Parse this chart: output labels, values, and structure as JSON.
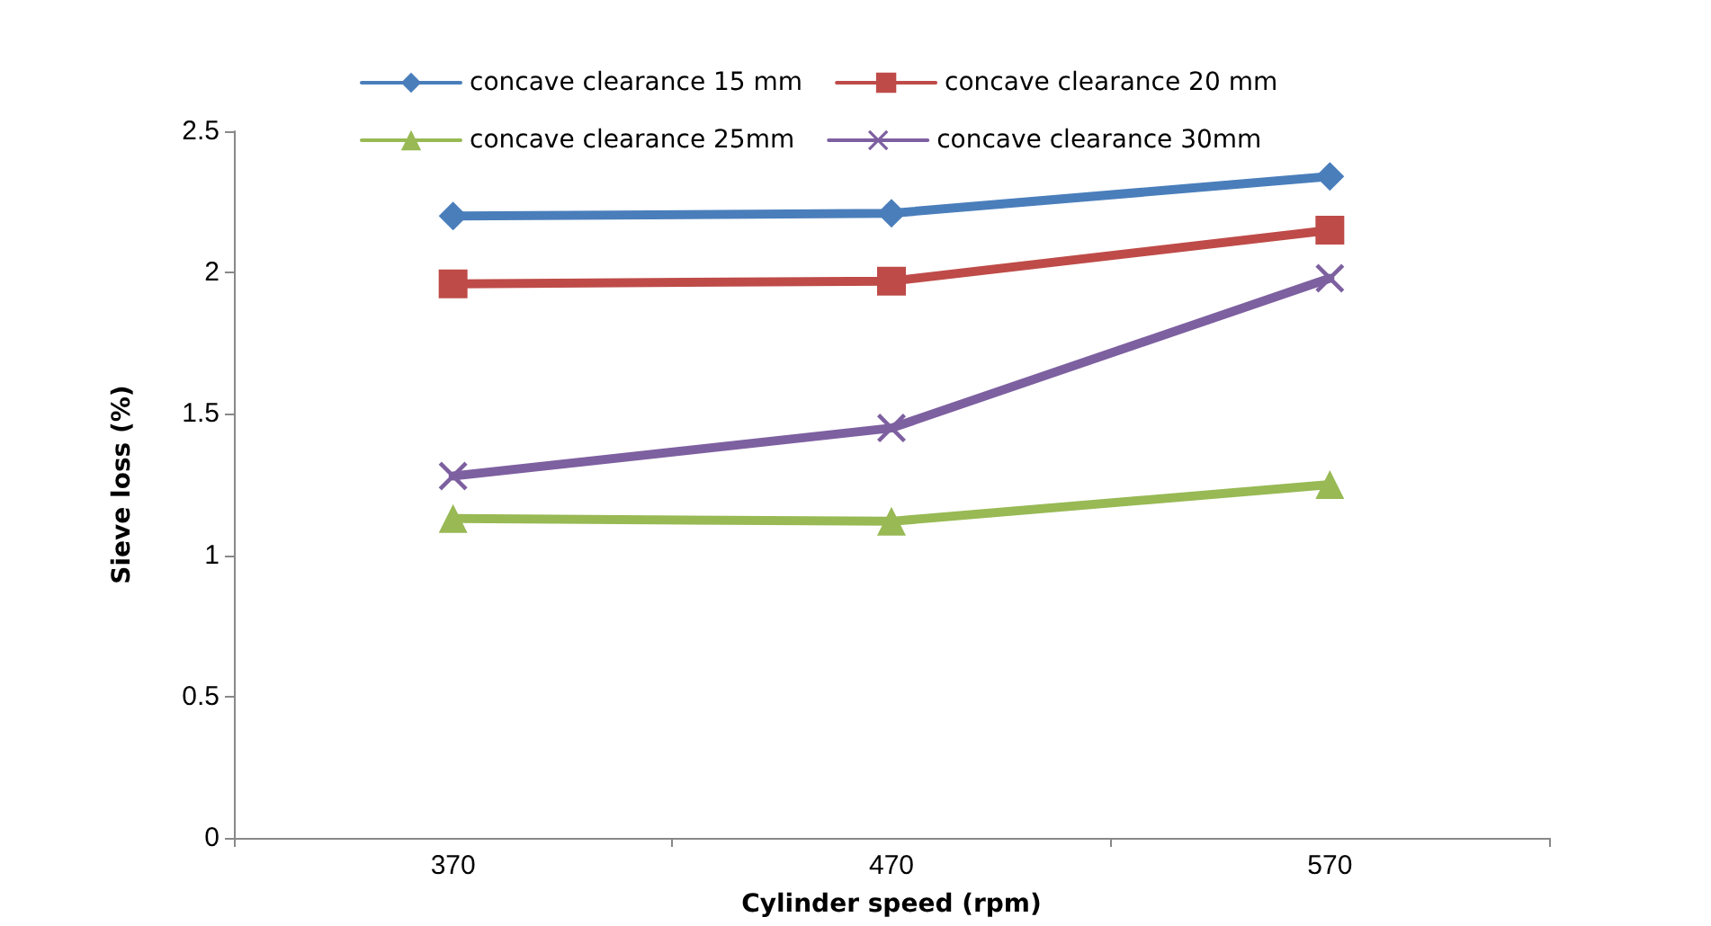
{
  "chart_data": {
    "type": "line",
    "xlabel": "Cylinder speed (rpm)",
    "ylabel": "Sieve loss (%)",
    "categories": [
      "370",
      "470",
      "570"
    ],
    "series": [
      {
        "name": "concave clearance 15 mm",
        "color": "#4a7ebb",
        "marker": "diamond",
        "values": [
          2.2,
          2.21,
          2.34
        ]
      },
      {
        "name": "concave clearance 20 mm",
        "color": "#be4b48",
        "marker": "square",
        "values": [
          1.96,
          1.97,
          2.15
        ]
      },
      {
        "name": "concave clearance 25mm",
        "color": "#98b954",
        "marker": "triangle",
        "values": [
          1.13,
          1.12,
          1.25
        ]
      },
      {
        "name": "concave clearance 30mm",
        "color": "#7d60a0",
        "marker": "cross",
        "values": [
          1.28,
          1.45,
          1.98
        ]
      }
    ],
    "ylim": [
      0,
      2.5
    ],
    "yticks": [
      0,
      0.5,
      1,
      1.5,
      2,
      2.5
    ],
    "grid": false,
    "legend": "top"
  }
}
